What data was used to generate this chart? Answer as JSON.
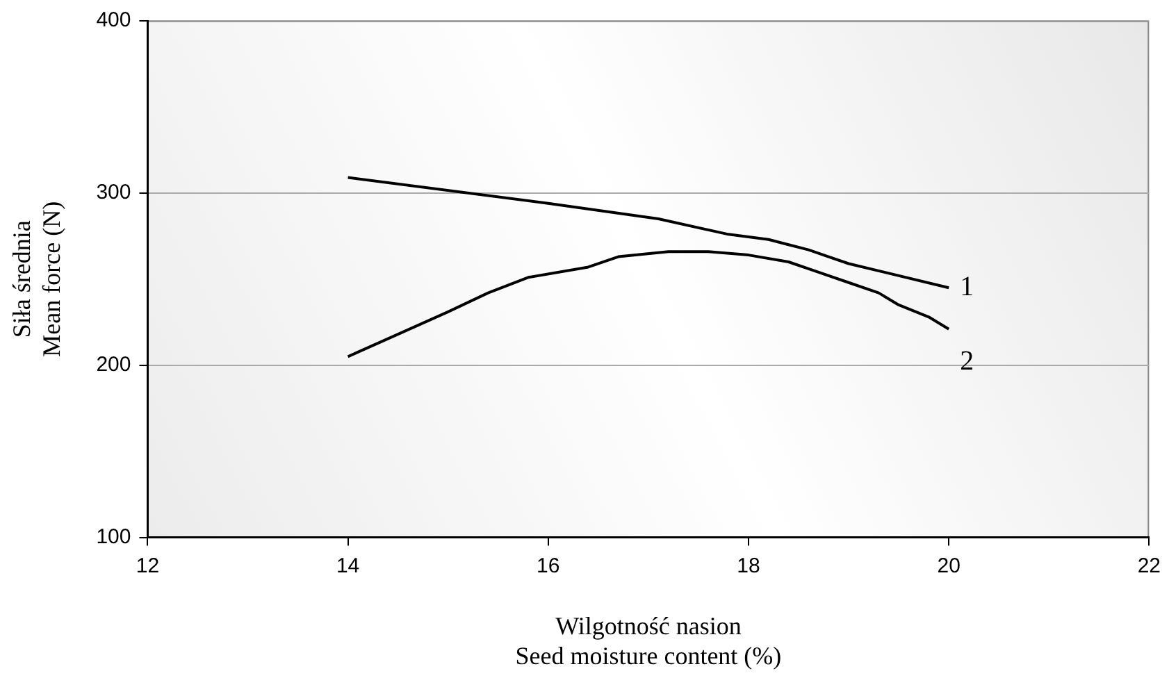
{
  "chart_data": {
    "type": "line",
    "xlabel": "Wilgotność nasion\nSeed moisture content (%)",
    "ylabel": "Siła średnia\nMean force (N)",
    "xlim": [
      12,
      22
    ],
    "xticks": [
      12,
      14,
      16,
      18,
      20,
      22
    ],
    "ylim": [
      100,
      400
    ],
    "yticks": [
      100,
      200,
      300,
      400
    ],
    "grid": "y",
    "legend": false,
    "marker": "none",
    "line_style": "solid",
    "series": [
      {
        "name": "1",
        "color": "#000000",
        "x": [
          14,
          16,
          17.1,
          17.8,
          18.2,
          18.4,
          18.6,
          18.8,
          19,
          20
        ],
        "values": [
          309,
          294,
          285,
          276,
          273,
          270,
          267,
          263,
          259,
          245
        ]
      },
      {
        "name": "2",
        "color": "#000000",
        "x": [
          14,
          14.5,
          15,
          15.4,
          15.8,
          16.4,
          16.7,
          17.2,
          17.6,
          18,
          18.4,
          18.7,
          19,
          19.3,
          19.5,
          19.8,
          20
        ],
        "values": [
          205,
          218,
          231,
          242,
          251,
          257,
          263,
          266,
          266,
          264,
          260,
          254,
          248,
          242,
          235,
          228,
          221
        ]
      }
    ]
  }
}
